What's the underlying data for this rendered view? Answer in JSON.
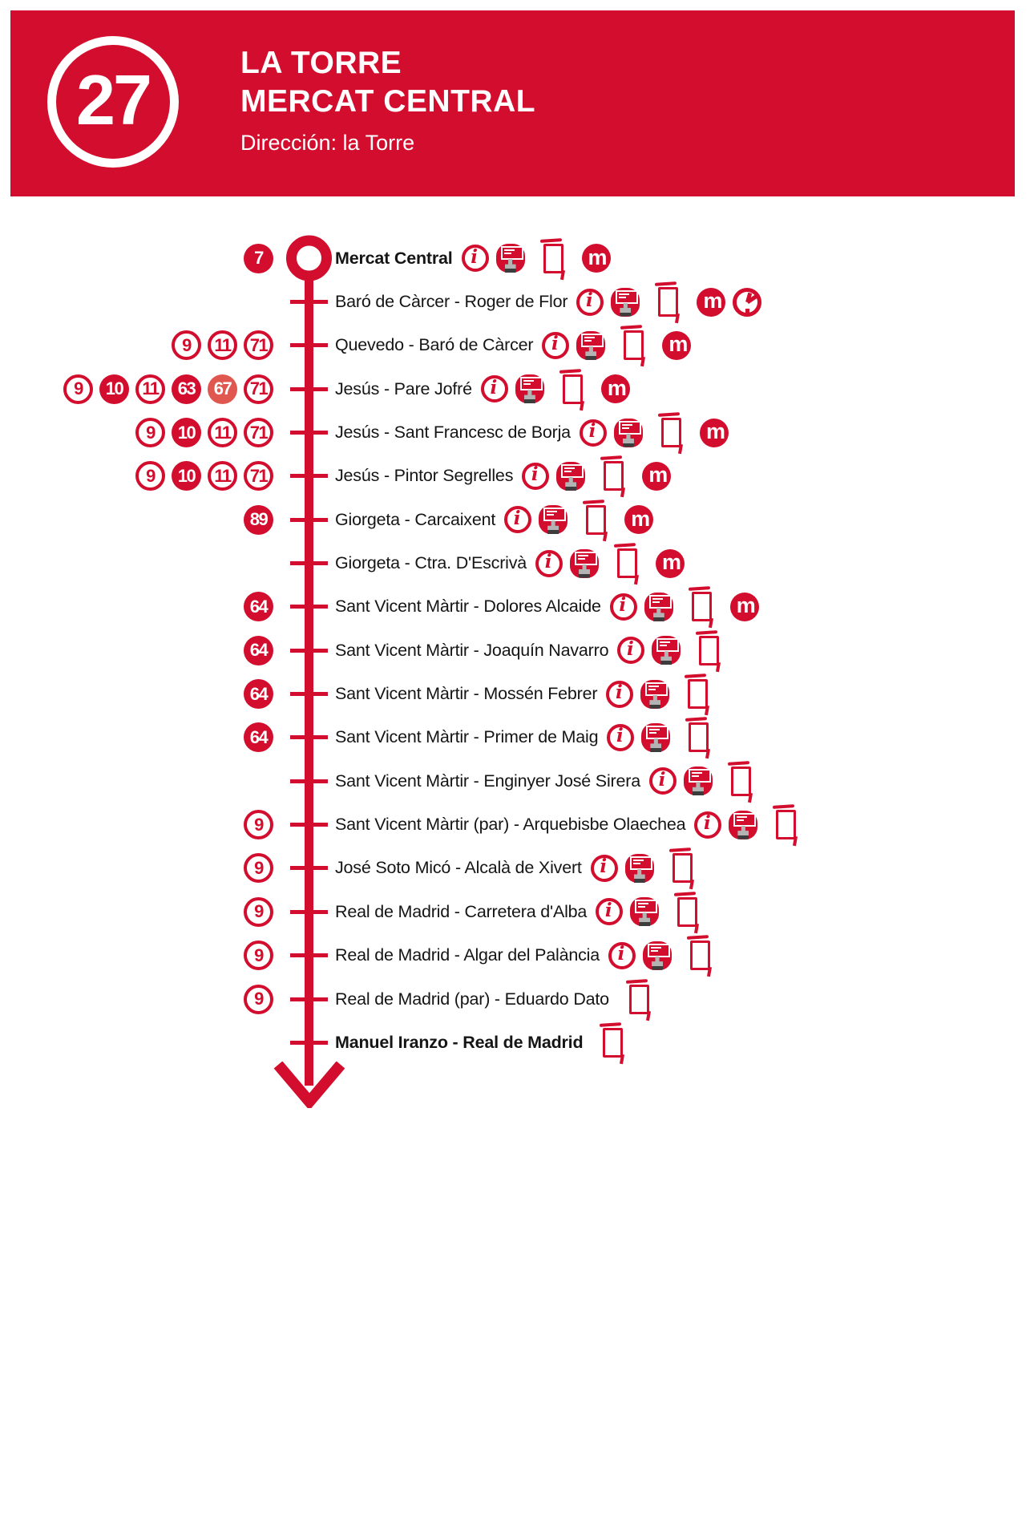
{
  "header": {
    "line_number": "27",
    "title_line1": "LA TORRE",
    "title_line2": "MERCAT CENTRAL",
    "direction": "Dirección: la Torre"
  },
  "colors": {
    "accent": "#d30d2d",
    "badge_light": "#e0574f",
    "header_text": "#ffffff",
    "stop_text": "#151515"
  },
  "icon_glyphs": {
    "info": "i",
    "metro": "m"
  },
  "stops": [
    {
      "name": "Mercat Central",
      "bold": true,
      "terminus": true,
      "badges": [
        {
          "n": "7",
          "style": "filled"
        }
      ],
      "icons": [
        "info",
        "machine",
        "post",
        "metro"
      ]
    },
    {
      "name": "Baró de Càrcer - Roger de Flor",
      "bold": false,
      "badges": [],
      "icons": [
        "info",
        "machine",
        "post",
        "metro",
        "clock"
      ]
    },
    {
      "name": "Quevedo - Baró de Càrcer",
      "bold": false,
      "badges": [
        {
          "n": "9",
          "style": "outline"
        },
        {
          "n": "11",
          "style": "outline"
        },
        {
          "n": "71",
          "style": "outline"
        }
      ],
      "icons": [
        "info",
        "machine",
        "post",
        "metro"
      ]
    },
    {
      "name": "Jesús - Pare Jofré",
      "bold": false,
      "badges": [
        {
          "n": "9",
          "style": "outline"
        },
        {
          "n": "10",
          "style": "filled"
        },
        {
          "n": "11",
          "style": "outline"
        },
        {
          "n": "63",
          "style": "filled"
        },
        {
          "n": "67",
          "style": "light"
        },
        {
          "n": "71",
          "style": "outline"
        }
      ],
      "icons": [
        "info",
        "machine",
        "post",
        "metro"
      ]
    },
    {
      "name": "Jesús - Sant Francesc de Borja",
      "bold": false,
      "badges": [
        {
          "n": "9",
          "style": "outline"
        },
        {
          "n": "10",
          "style": "filled"
        },
        {
          "n": "11",
          "style": "outline"
        },
        {
          "n": "71",
          "style": "outline"
        }
      ],
      "icons": [
        "info",
        "machine",
        "post",
        "metro"
      ]
    },
    {
      "name": "Jesús - Pintor Segrelles",
      "bold": false,
      "badges": [
        {
          "n": "9",
          "style": "outline"
        },
        {
          "n": "10",
          "style": "filled"
        },
        {
          "n": "11",
          "style": "outline"
        },
        {
          "n": "71",
          "style": "outline"
        }
      ],
      "icons": [
        "info",
        "machine",
        "post",
        "metro"
      ]
    },
    {
      "name": "Giorgeta - Carcaixent",
      "bold": false,
      "badges": [
        {
          "n": "89",
          "style": "filled"
        }
      ],
      "icons": [
        "info",
        "machine",
        "post",
        "metro"
      ]
    },
    {
      "name": "Giorgeta - Ctra. D'Escrivà",
      "bold": false,
      "badges": [],
      "icons": [
        "info",
        "machine",
        "post",
        "metro"
      ]
    },
    {
      "name": "Sant Vicent Màrtir - Dolores Alcaide",
      "bold": false,
      "badges": [
        {
          "n": "64",
          "style": "filled"
        }
      ],
      "icons": [
        "info",
        "machine",
        "post",
        "metro"
      ]
    },
    {
      "name": "Sant Vicent Màrtir - Joaquín Navarro",
      "bold": false,
      "badges": [
        {
          "n": "64",
          "style": "filled"
        }
      ],
      "icons": [
        "info",
        "machine",
        "post"
      ]
    },
    {
      "name": "Sant Vicent Màrtir - Mossén Febrer",
      "bold": false,
      "badges": [
        {
          "n": "64",
          "style": "filled"
        }
      ],
      "icons": [
        "info",
        "machine",
        "post"
      ]
    },
    {
      "name": "Sant Vicent Màrtir - Primer de Maig",
      "bold": false,
      "badges": [
        {
          "n": "64",
          "style": "filled"
        }
      ],
      "icons": [
        "info",
        "machine",
        "post"
      ]
    },
    {
      "name": "Sant Vicent Màrtir - Enginyer José Sirera",
      "bold": false,
      "badges": [],
      "icons": [
        "info",
        "machine",
        "post"
      ]
    },
    {
      "name": "Sant Vicent Màrtir (par) - Arquebisbe Olaechea",
      "bold": false,
      "badges": [
        {
          "n": "9",
          "style": "outline"
        }
      ],
      "icons": [
        "info",
        "machine",
        "post"
      ]
    },
    {
      "name": "José Soto Micó - Alcalà de Xivert",
      "bold": false,
      "badges": [
        {
          "n": "9",
          "style": "outline"
        }
      ],
      "icons": [
        "info",
        "machine",
        "post"
      ]
    },
    {
      "name": "Real de Madrid - Carretera d'Alba",
      "bold": false,
      "badges": [
        {
          "n": "9",
          "style": "outline"
        }
      ],
      "icons": [
        "info",
        "machine",
        "post"
      ]
    },
    {
      "name": "Real de Madrid - Algar del Palància",
      "bold": false,
      "badges": [
        {
          "n": "9",
          "style": "outline"
        }
      ],
      "icons": [
        "info",
        "machine",
        "post"
      ]
    },
    {
      "name": "Real de Madrid (par) - Eduardo Dato",
      "bold": false,
      "badges": [
        {
          "n": "9",
          "style": "outline"
        }
      ],
      "icons": [
        "post"
      ]
    },
    {
      "name": "Manuel Iranzo - Real de Madrid",
      "bold": true,
      "badges": [],
      "icons": [
        "post"
      ]
    }
  ]
}
